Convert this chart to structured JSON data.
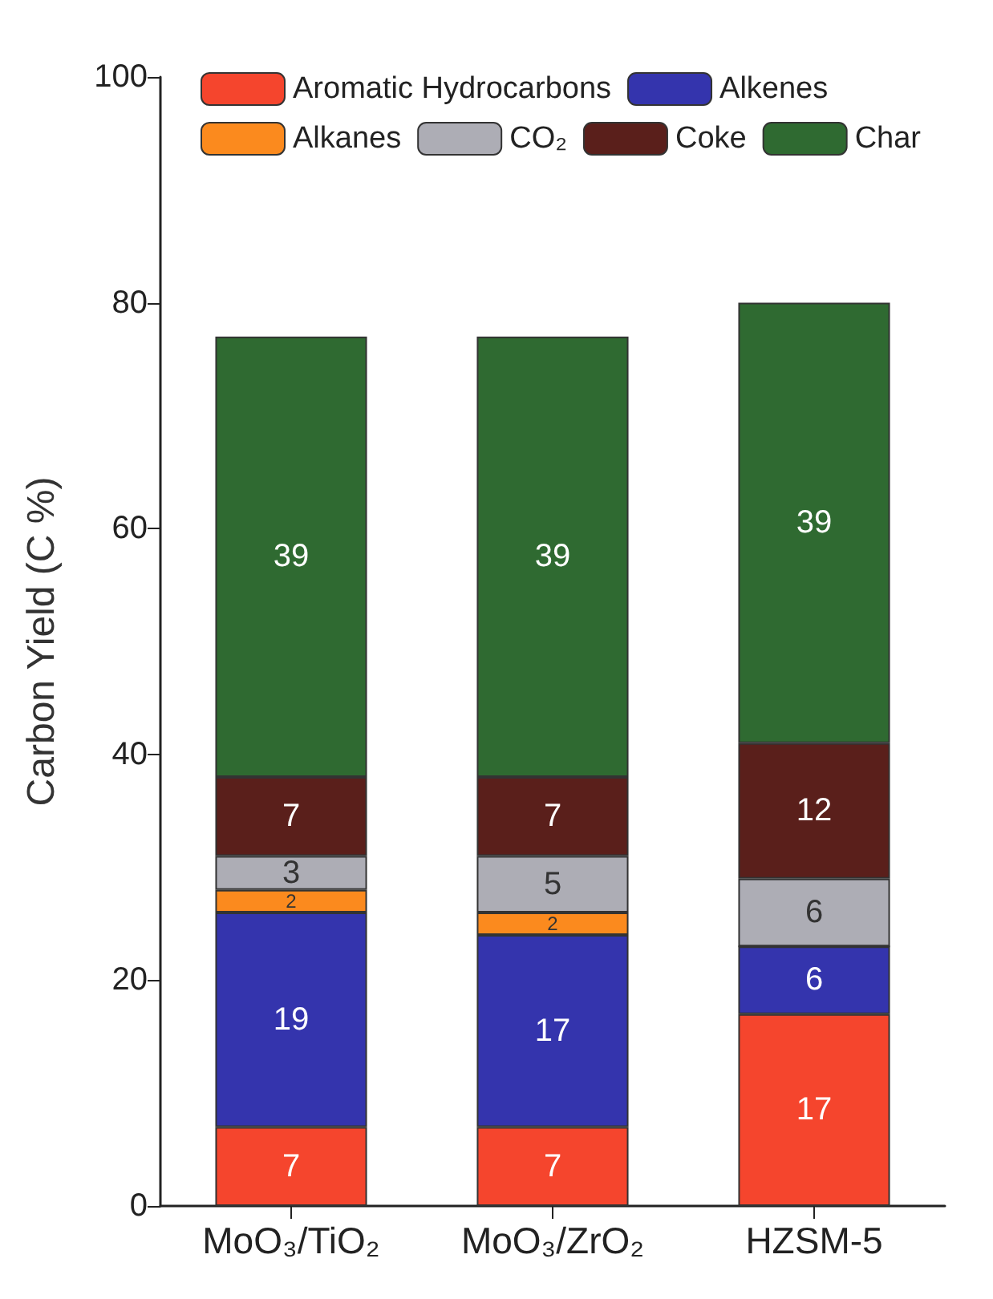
{
  "chart_data": {
    "type": "bar",
    "stacked": true,
    "ylabel": "Carbon Yield (C %)",
    "categories": [
      "MoO₃/TiO₂",
      "MoO₃/ZrO₂",
      "HZSM-5"
    ],
    "series": [
      {
        "name": "Aromatic Hydrocarbons",
        "color": "#f5452d",
        "values": [
          7,
          7,
          17
        ],
        "value_labels": [
          "7",
          "7",
          "17"
        ]
      },
      {
        "name": "Alkenes",
        "color": "#3434ad",
        "values": [
          19,
          17,
          6
        ],
        "value_labels": [
          "19",
          "17",
          "6"
        ]
      },
      {
        "name": "Alkanes",
        "color": "#fb8a1e",
        "values": [
          2,
          2,
          0
        ],
        "value_labels": [
          "2",
          "2",
          null
        ]
      },
      {
        "name": "CO₂",
        "color": "#adadb5",
        "values": [
          3,
          5,
          6
        ],
        "value_labels": [
          "3",
          "5",
          "6"
        ]
      },
      {
        "name": "Coke",
        "color": "#5a1f1b",
        "values": [
          7,
          7,
          12
        ],
        "value_labels": [
          "7",
          "7",
          "12"
        ]
      },
      {
        "name": "Char",
        "color": "#2f6a31",
        "values": [
          39,
          39,
          39
        ],
        "value_labels": [
          "39",
          "39",
          "39"
        ]
      }
    ],
    "ylim": [
      0,
      100
    ],
    "yticks": [
      0,
      20,
      40,
      60,
      80,
      100
    ],
    "grid": false,
    "legend": "top"
  }
}
